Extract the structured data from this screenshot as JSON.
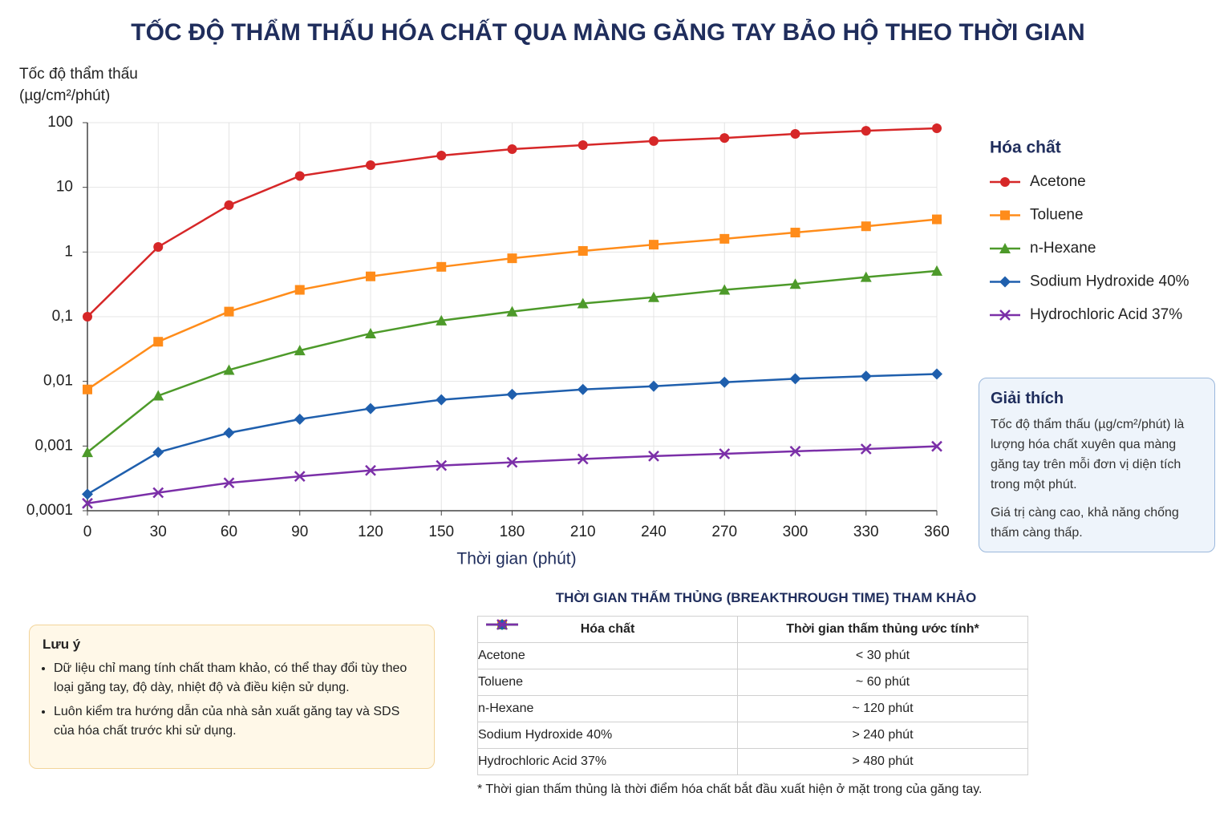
{
  "chart_data": {
    "type": "line",
    "title": "TỐC ĐỘ THẨM THẤU HÓA CHẤT QUA MÀNG GĂNG TAY BẢO HỘ THEO THỜI GIAN",
    "ylabel": [
      "Tốc độ thẩm thấu",
      "(µg/cm²/phút)"
    ],
    "xlabel": "Thời gian (phút)",
    "x": [
      0,
      30,
      60,
      90,
      120,
      150,
      180,
      210,
      240,
      270,
      300,
      330,
      360
    ],
    "xlim": [
      0,
      360
    ],
    "xticks": [
      0,
      30,
      60,
      90,
      120,
      150,
      180,
      210,
      240,
      270,
      300,
      330,
      360
    ],
    "ylim": [
      0.0001,
      100
    ],
    "yscale": "log",
    "yticks": [
      {
        "value": 0.0001,
        "label": "0,0001"
      },
      {
        "value": 0.001,
        "label": "0,001"
      },
      {
        "value": 0.01,
        "label": "0,01"
      },
      {
        "value": 0.1,
        "label": "0,1"
      },
      1,
      10,
      100
    ],
    "grid": true,
    "legend_title": "Hóa chất",
    "legend_position": "right",
    "series": [
      {
        "name": "Acetone",
        "color": "#d62728",
        "marker": "circle",
        "values": [
          0.1,
          1.2,
          5.3,
          15,
          22,
          31,
          39,
          45,
          52,
          58,
          67,
          75,
          82
        ]
      },
      {
        "name": "Toluene",
        "color": "#ff8c1a",
        "marker": "square",
        "values": [
          0.0075,
          0.041,
          0.12,
          0.26,
          0.42,
          0.59,
          0.8,
          1.04,
          1.3,
          1.6,
          2.0,
          2.5,
          3.2
        ]
      },
      {
        "name": "n-Hexane",
        "color": "#4d9a2a",
        "marker": "triangle",
        "values": [
          0.0008,
          0.006,
          0.015,
          0.03,
          0.055,
          0.087,
          0.12,
          0.16,
          0.2,
          0.26,
          0.32,
          0.41,
          0.51
        ]
      },
      {
        "name": "Sodium Hydroxide 40%",
        "color": "#1f5fad",
        "marker": "diamond",
        "values": [
          0.00018,
          0.0008,
          0.0016,
          0.0026,
          0.0038,
          0.0052,
          0.0063,
          0.0075,
          0.0084,
          0.0097,
          0.011,
          0.012,
          0.013
        ]
      },
      {
        "name": "Hydrochloric Acid 37%",
        "color": "#7b2fa8",
        "marker": "x",
        "values": [
          0.00013,
          0.00019,
          0.00027,
          0.00034,
          0.00042,
          0.0005,
          0.00056,
          0.00063,
          0.0007,
          0.00076,
          0.00083,
          0.0009,
          0.00099
        ]
      }
    ]
  },
  "explanation": {
    "title": "Giải thích",
    "paragraphs": [
      "Tốc độ thẩm thấu (µg/cm²/phút) là lượng hóa chất xuyên qua màng găng tay trên mỗi đơn vị diện tích trong một phút.",
      "Giá trị càng cao, khả năng chống thấm càng thấp."
    ]
  },
  "note": {
    "title": "Lưu ý",
    "items": [
      "Dữ liệu chỉ mang tính chất tham khảo, có thể thay đổi tùy theo loại găng tay, độ dày, nhiệt độ và điều kiện sử dụng.",
      "Luôn kiểm tra hướng dẫn của nhà sản xuất găng tay và SDS của hóa chất trước khi sử dụng."
    ]
  },
  "table": {
    "title": "THỜI GIAN THẤM THỦNG (BREAKTHROUGH TIME) THAM KHẢO",
    "header": [
      "Hóa chất",
      "Thời gian thấm thủng ước tính*"
    ],
    "rows": [
      [
        "Acetone",
        "< 30 phút"
      ],
      [
        "Toluene",
        "~ 60 phút"
      ],
      [
        "n-Hexane",
        "~ 120 phút"
      ],
      [
        "Sodium Hydroxide 40%",
        "> 240 phút"
      ],
      [
        "Hydrochloric Acid 37%",
        "> 480 phút"
      ]
    ],
    "footnote": "* Thời gian thấm thủng là thời điểm hóa chất bắt đầu xuất hiện ở mặt trong của găng tay."
  }
}
